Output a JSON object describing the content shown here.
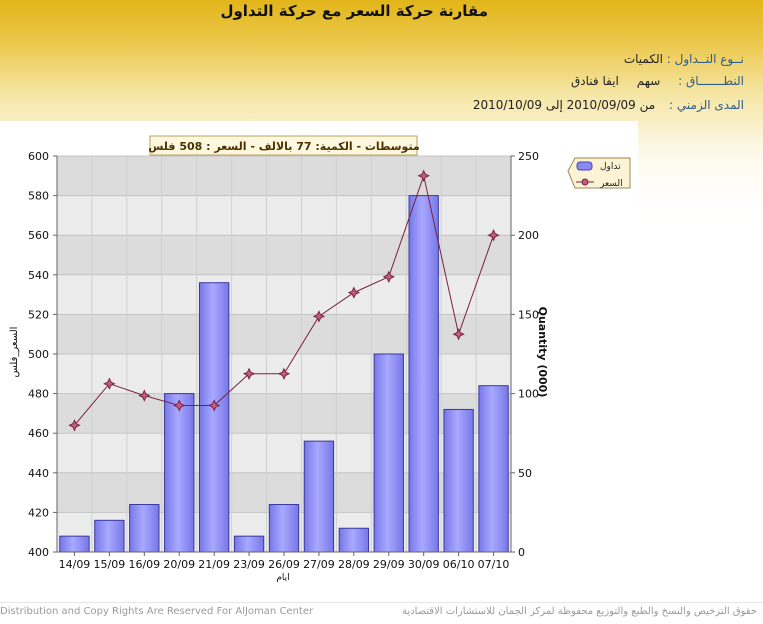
{
  "header": {
    "title": "مقارنة حركة السعر مع حركة التداول",
    "type_label": "نــوع التــداول :",
    "type_value": "الكميات",
    "scope_label": "النطـــــــاق :",
    "scope_kind": "سهم",
    "scope_value": "ايفا فنادق",
    "range_label": "المدى الزمني :",
    "range_value": "من 2010/09/09 إلى 2010/10/09"
  },
  "footer": {
    "left_text": "Distribution and Copy Rights Are Reserved For AlJoman Center",
    "right_text": "حقوق الترخيص والنسخ والطبع والتوزيع محفوظة لمركز الجمان للاستشارات الاقتصادية"
  },
  "colors": {
    "bar": "#7777e8",
    "bar_light": "#a9a9ff",
    "line": "#7a2040",
    "marker": "#c06080",
    "plot_band_light": "#ececec",
    "plot_band_dark": "#dcdcdc"
  },
  "chart_data": {
    "type": "bar",
    "title": "متوسطات - الكمية: 77 بالالف  - السعر : 508 فلس",
    "xlabel": "ايام",
    "categories": [
      "14/09",
      "15/09",
      "16/09",
      "20/09",
      "21/09",
      "23/09",
      "26/09",
      "27/09",
      "28/09",
      "29/09",
      "30/09",
      "06/10",
      "07/10"
    ],
    "y_left": {
      "label": "السعر_فلس",
      "ylim": [
        400,
        600
      ],
      "ticks": [
        400,
        420,
        440,
        460,
        480,
        500,
        520,
        540,
        560,
        580,
        600
      ]
    },
    "y_right": {
      "label": "Quantity (000)",
      "ylim": [
        0,
        250
      ],
      "ticks": [
        0,
        50,
        100,
        150,
        200,
        250
      ]
    },
    "grid": true,
    "legend_position": "top-right",
    "series": [
      {
        "name": "تداول",
        "kind": "bar",
        "axis": "right",
        "values": [
          10,
          20,
          30,
          100,
          170,
          10,
          30,
          70,
          15,
          125,
          225,
          90,
          105
        ]
      },
      {
        "name": "السعر",
        "kind": "line",
        "axis": "left",
        "values": [
          464,
          485,
          479,
          474,
          474,
          490,
          490,
          519,
          531,
          539,
          590,
          510,
          560
        ]
      }
    ]
  }
}
